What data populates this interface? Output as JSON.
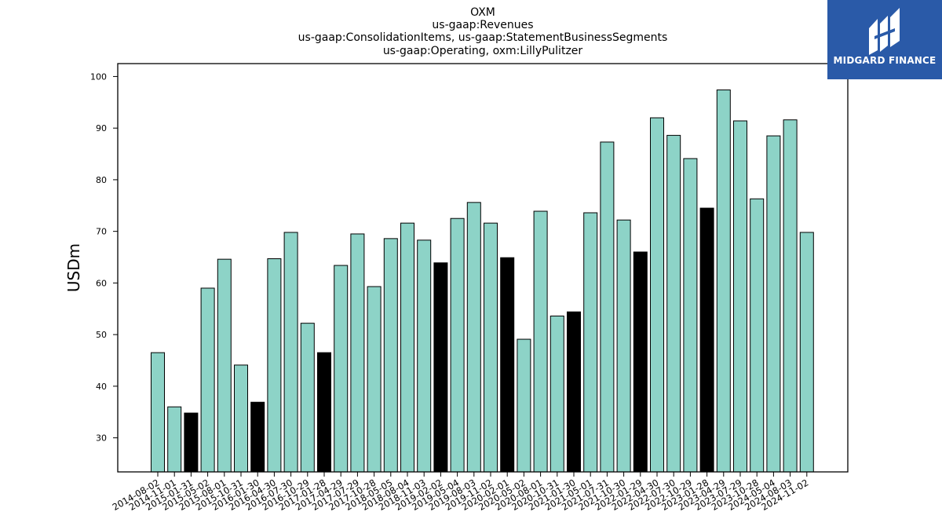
{
  "logo": {
    "text": "MIDGARD FINANCE"
  },
  "colors": {
    "normal_bar": "#8dd3c7",
    "highlight_bar": "#000000",
    "edge": "#000000",
    "logo_bg": "#2a5aa8"
  },
  "chart_data": {
    "type": "bar",
    "title": [
      "OXM",
      "us-gaap:Revenues",
      "us-gaap:ConsolidationItems, us-gaap:StatementBusinessSegments",
      "us-gaap:Operating, oxm:LillyPulitzer"
    ],
    "xlabel": "",
    "ylabel": "USDm",
    "ylim": [
      23.4,
      102.5
    ],
    "yticks": [
      30,
      40,
      50,
      60,
      70,
      80,
      90,
      100
    ],
    "grid": false,
    "categories": [
      "2014-08-02",
      "2014-11-01",
      "2015-01-31",
      "2015-05-02",
      "2015-08-01",
      "2015-10-31",
      "2016-01-30",
      "2016-04-30",
      "2016-07-30",
      "2016-10-29",
      "2017-01-28",
      "2017-04-29",
      "2017-07-29",
      "2017-10-28",
      "2018-05-05",
      "2018-08-04",
      "2018-11-03",
      "2019-02-02",
      "2019-05-04",
      "2019-08-03",
      "2019-11-02",
      "2020-02-01",
      "2020-05-02",
      "2020-08-01",
      "2020-10-31",
      "2021-01-30",
      "2021-05-01",
      "2021-07-31",
      "2021-10-30",
      "2022-01-29",
      "2022-04-30",
      "2022-07-30",
      "2022-10-29",
      "2023-01-28",
      "2023-04-29",
      "2023-07-29",
      "2023-10-28",
      "2024-05-04",
      "2024-08-03",
      "2024-11-02"
    ],
    "values": [
      46.5,
      36.0,
      34.8,
      59.0,
      64.6,
      44.1,
      36.9,
      64.7,
      69.8,
      52.2,
      46.5,
      63.4,
      69.5,
      59.3,
      68.6,
      71.6,
      68.3,
      63.9,
      72.5,
      75.6,
      71.6,
      64.9,
      49.1,
      73.9,
      53.6,
      54.4,
      73.6,
      87.3,
      72.2,
      66.0,
      92.0,
      88.6,
      84.1,
      74.5,
      97.4,
      91.4,
      76.3,
      88.5,
      91.6,
      69.8
    ],
    "highlighted": [
      false,
      false,
      true,
      false,
      false,
      false,
      true,
      false,
      false,
      false,
      true,
      false,
      false,
      false,
      false,
      false,
      false,
      true,
      false,
      false,
      false,
      true,
      false,
      false,
      false,
      true,
      false,
      false,
      false,
      true,
      false,
      false,
      false,
      true,
      false,
      false,
      false,
      false,
      false,
      false
    ]
  }
}
